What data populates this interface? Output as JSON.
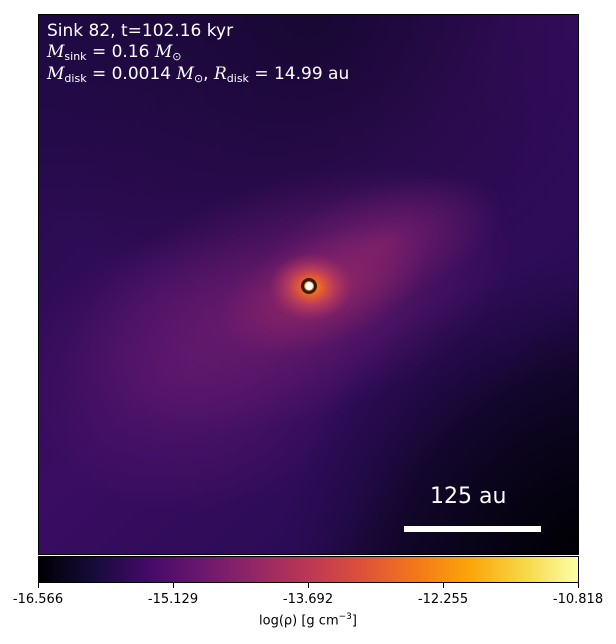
{
  "annotation": {
    "line1": "Sink 82, t=102.16 kyr",
    "m_sink_label": "M",
    "m_sink_sub": "sink",
    "m_sink_value": " = 0.16 ",
    "m_sun_symbol": "M",
    "m_sun_sub": "⊙",
    "m_disk_label": "M",
    "m_disk_sub": "disk",
    "m_disk_value": " = 0.0014 ",
    "r_disk_label": "R",
    "r_disk_sub": "disk",
    "r_disk_value": " = 14.99 au",
    "separator": ", "
  },
  "scale_bar": {
    "label": "125 au"
  },
  "colorbar": {
    "ticks": [
      "-16.566",
      "-15.129",
      "-13.692",
      "-12.255",
      "-10.818"
    ],
    "label_main": "log(ρ) [g cm",
    "label_exp": "−3",
    "label_end": "]",
    "colormap": "inferno"
  },
  "colors": {
    "text": "#ffffff",
    "sink_marker": "#ffffff"
  }
}
